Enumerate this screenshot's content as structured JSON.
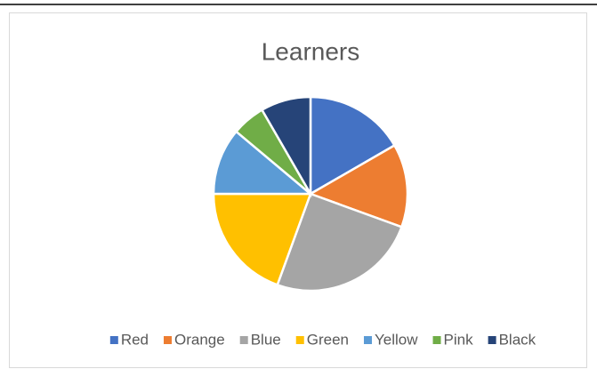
{
  "chart_data": {
    "type": "pie",
    "title": "Learners",
    "categories": [
      "Red",
      "Orange",
      "Blue",
      "Green",
      "Yellow",
      "Pink",
      "Black"
    ],
    "values": [
      6,
      5,
      9,
      7,
      4,
      2,
      3
    ],
    "colors": [
      "#4472c4",
      "#ed7d31",
      "#a5a5a5",
      "#ffc000",
      "#5b9bd5",
      "#70ad47",
      "#264478"
    ],
    "legend": "bottom"
  }
}
